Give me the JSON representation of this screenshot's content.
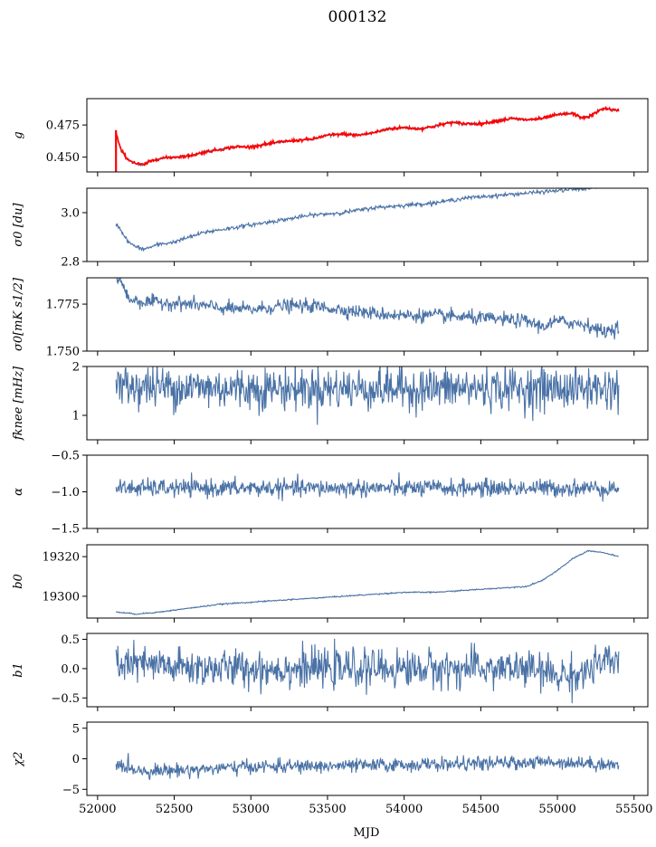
{
  "figure": {
    "title": "000132",
    "xlabel": "MJD"
  },
  "chart_data": {
    "type": "line",
    "x_range": [
      52120,
      55400
    ],
    "xlim": [
      51930,
      55590
    ],
    "xticks": [
      52000,
      52500,
      53000,
      53500,
      54000,
      54500,
      55000,
      55500
    ],
    "colors": {
      "series": "#4a72a6",
      "overlay": "#ff0000"
    },
    "panels": [
      {
        "ylabel": "g",
        "ylim": [
          0.4385,
          0.4955
        ],
        "yticks": [
          0.45,
          0.475
        ],
        "ytick_labels": [
          "0.450",
          "0.475"
        ],
        "noise": 0.0004,
        "overlay_noise": 0.0006,
        "overlay": "red",
        "anchors": [
          [
            52120,
            0.469
          ],
          [
            52150,
            0.456
          ],
          [
            52200,
            0.448
          ],
          [
            52250,
            0.445
          ],
          [
            52300,
            0.444
          ],
          [
            52350,
            0.447
          ],
          [
            52400,
            0.449
          ],
          [
            52500,
            0.45
          ],
          [
            52600,
            0.451
          ],
          [
            52700,
            0.454
          ],
          [
            52800,
            0.456
          ],
          [
            52900,
            0.458
          ],
          [
            53000,
            0.458
          ],
          [
            53100,
            0.46
          ],
          [
            53200,
            0.462
          ],
          [
            53300,
            0.463
          ],
          [
            53400,
            0.464
          ],
          [
            53500,
            0.467
          ],
          [
            53600,
            0.468
          ],
          [
            53700,
            0.467
          ],
          [
            53800,
            0.469
          ],
          [
            53900,
            0.472
          ],
          [
            54000,
            0.473
          ],
          [
            54100,
            0.472
          ],
          [
            54200,
            0.474
          ],
          [
            54300,
            0.477
          ],
          [
            54400,
            0.476
          ],
          [
            54500,
            0.476
          ],
          [
            54600,
            0.478
          ],
          [
            54700,
            0.48
          ],
          [
            54800,
            0.479
          ],
          [
            54900,
            0.48
          ],
          [
            55000,
            0.483
          ],
          [
            55100,
            0.484
          ],
          [
            55150,
            0.481
          ],
          [
            55200,
            0.481
          ],
          [
            55300,
            0.488
          ],
          [
            55400,
            0.486
          ]
        ]
      },
      {
        "ylabel": "σ0 [du]",
        "ylim": [
          2.8,
          3.1
        ],
        "yticks": [
          2.8,
          3.0
        ],
        "ytick_labels": [
          "2.8",
          "3.0"
        ],
        "noise": 0.004,
        "anchors": [
          [
            52130,
            2.95
          ],
          [
            52200,
            2.88
          ],
          [
            52250,
            2.86
          ],
          [
            52300,
            2.85
          ],
          [
            52400,
            2.87
          ],
          [
            52500,
            2.88
          ],
          [
            52600,
            2.9
          ],
          [
            52700,
            2.92
          ],
          [
            52800,
            2.93
          ],
          [
            52900,
            2.94
          ],
          [
            53000,
            2.95
          ],
          [
            53200,
            2.97
          ],
          [
            53400,
            2.99
          ],
          [
            53600,
            3.0
          ],
          [
            53800,
            3.02
          ],
          [
            54000,
            3.03
          ],
          [
            54200,
            3.04
          ],
          [
            54400,
            3.06
          ],
          [
            54600,
            3.07
          ],
          [
            54800,
            3.08
          ],
          [
            55000,
            3.09
          ],
          [
            55200,
            3.1
          ],
          [
            55400,
            3.12
          ]
        ]
      },
      {
        "ylabel": "σ0[mK s1/2]",
        "ylim": [
          1.75,
          1.789
        ],
        "yticks": [
          1.75,
          1.775
        ],
        "ytick_labels": [
          "1.750",
          "1.775"
        ],
        "noise": 0.0018,
        "anchors": [
          [
            52130,
            1.789
          ],
          [
            52160,
            1.786
          ],
          [
            52200,
            1.778
          ],
          [
            52300,
            1.776
          ],
          [
            52400,
            1.776
          ],
          [
            52600,
            1.775
          ],
          [
            52800,
            1.773
          ],
          [
            53000,
            1.772
          ],
          [
            53200,
            1.774
          ],
          [
            53400,
            1.774
          ],
          [
            53600,
            1.772
          ],
          [
            53800,
            1.77
          ],
          [
            54000,
            1.769
          ],
          [
            54200,
            1.769
          ],
          [
            54400,
            1.768
          ],
          [
            54600,
            1.767
          ],
          [
            54800,
            1.766
          ],
          [
            54900,
            1.763
          ],
          [
            55000,
            1.766
          ],
          [
            55200,
            1.764
          ],
          [
            55300,
            1.76
          ],
          [
            55400,
            1.763
          ]
        ]
      },
      {
        "ylabel": "fknee [mHz]",
        "ylim": [
          0.5,
          2.0
        ],
        "yticks": [
          1,
          2
        ],
        "ytick_labels": [
          "1",
          "2"
        ],
        "noise": 0.22,
        "anchors": [
          [
            52130,
            1.6
          ],
          [
            53000,
            1.55
          ],
          [
            54000,
            1.55
          ],
          [
            55000,
            1.55
          ],
          [
            55400,
            1.55
          ]
        ]
      },
      {
        "ylabel": "α",
        "ylim": [
          -1.5,
          -0.5
        ],
        "yticks": [
          -1.5,
          -1.0,
          -0.5
        ],
        "ytick_labels": [
          "−1.5",
          "−1.0",
          "−0.5"
        ],
        "noise": 0.06,
        "anchors": [
          [
            52130,
            -0.95
          ],
          [
            53000,
            -0.95
          ],
          [
            54000,
            -0.95
          ],
          [
            55000,
            -0.95
          ],
          [
            55400,
            -0.95
          ]
        ]
      },
      {
        "ylabel": "b0",
        "ylim": [
          19289,
          19326
        ],
        "yticks": [
          19300,
          19320
        ],
        "ytick_labels": [
          "19300",
          "19320"
        ],
        "noise": 0.15,
        "anchors": [
          [
            52130,
            19292
          ],
          [
            52250,
            19291
          ],
          [
            52400,
            19292
          ],
          [
            52600,
            19294
          ],
          [
            52800,
            19296
          ],
          [
            53000,
            19297
          ],
          [
            53200,
            19298
          ],
          [
            53400,
            19299
          ],
          [
            53600,
            19300
          ],
          [
            53800,
            19301
          ],
          [
            54000,
            19302
          ],
          [
            54200,
            19302
          ],
          [
            54400,
            19303
          ],
          [
            54600,
            19304
          ],
          [
            54800,
            19305
          ],
          [
            54900,
            19308
          ],
          [
            55000,
            19313
          ],
          [
            55100,
            19319
          ],
          [
            55200,
            19323
          ],
          [
            55300,
            19322
          ],
          [
            55400,
            19320
          ]
        ]
      },
      {
        "ylabel": "b1",
        "ylim": [
          -0.65,
          0.6
        ],
        "yticks": [
          -0.5,
          0.0,
          0.5
        ],
        "ytick_labels": [
          "−0.5",
          "0.0",
          "0.5"
        ],
        "noise": 0.16,
        "anchors": [
          [
            52130,
            0.1
          ],
          [
            52500,
            0.02
          ],
          [
            53000,
            0.0
          ],
          [
            54000,
            0.0
          ],
          [
            54800,
            0.0
          ],
          [
            55000,
            -0.12
          ],
          [
            55150,
            -0.1
          ],
          [
            55300,
            0.1
          ],
          [
            55400,
            0.1
          ]
        ]
      },
      {
        "ylabel": "χ2",
        "ylim": [
          -6,
          6
        ],
        "yticks": [
          -5,
          0,
          5
        ],
        "ytick_labels": [
          "−5",
          "0",
          "5"
        ],
        "noise": 0.55,
        "anchors": [
          [
            52130,
            -1.0
          ],
          [
            52300,
            -2.0
          ],
          [
            52600,
            -1.8
          ],
          [
            53000,
            -1.3
          ],
          [
            53500,
            -1.2
          ],
          [
            54000,
            -1.0
          ],
          [
            54500,
            -0.8
          ],
          [
            55000,
            -0.5
          ],
          [
            55400,
            -1.0
          ]
        ]
      }
    ]
  }
}
